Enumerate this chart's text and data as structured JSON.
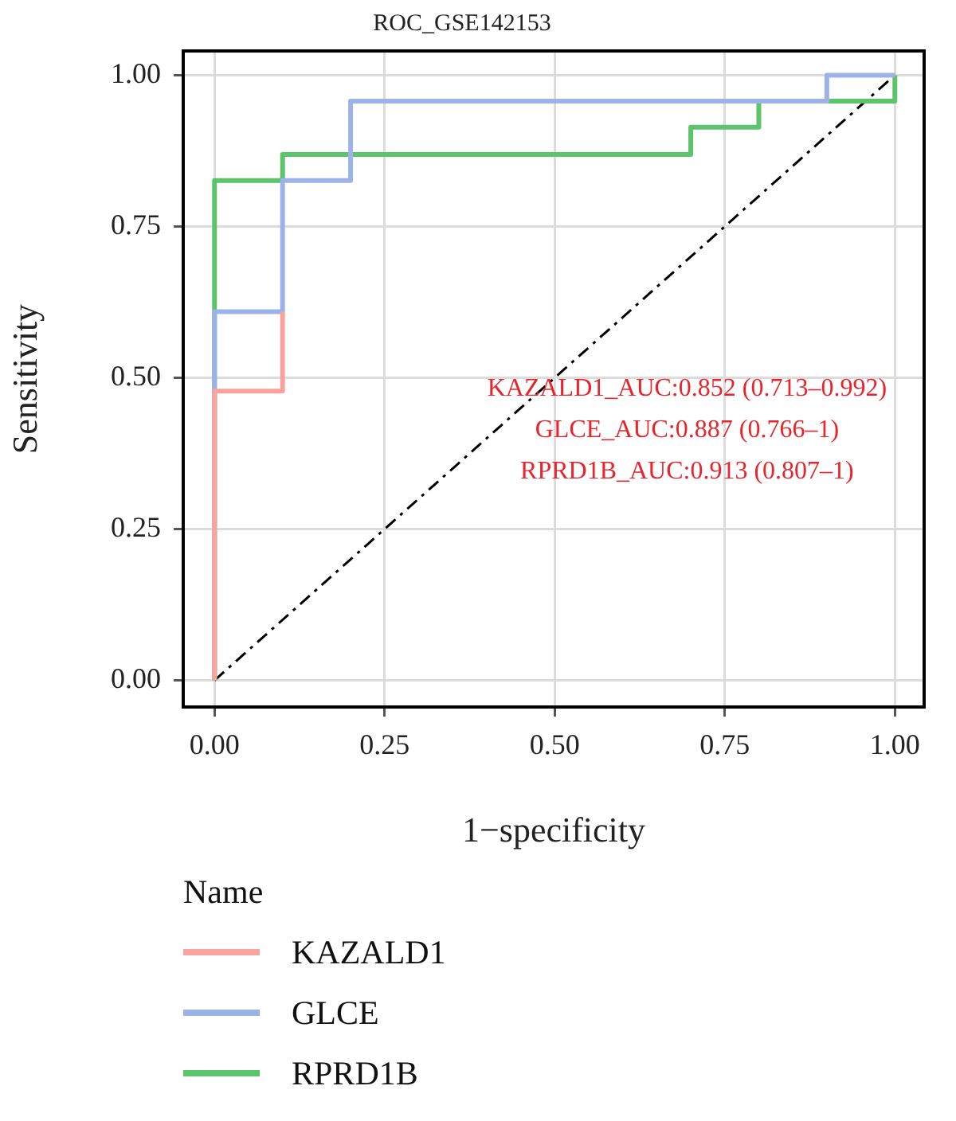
{
  "chart_data": {
    "type": "line",
    "title": "ROC_GSE142153",
    "xlabel": "1−specificity",
    "ylabel": "Sensitivity",
    "legend_title": "Name",
    "legend": "bottom left",
    "xlim": [
      -0.046,
      1.043
    ],
    "ylim": [
      -0.044,
      1.04
    ],
    "xticks": [
      {
        "value": 0,
        "label": "0.00"
      },
      {
        "value": 0.25,
        "label": "0.25"
      },
      {
        "value": 0.5,
        "label": "0.50"
      },
      {
        "value": 0.75,
        "label": "0.75"
      },
      {
        "value": 1,
        "label": "1.00"
      }
    ],
    "yticks": [
      {
        "value": 0,
        "label": "0.00"
      },
      {
        "value": 0.25,
        "label": "0.25"
      },
      {
        "value": 0.5,
        "label": "0.50"
      },
      {
        "value": 0.75,
        "label": "0.75"
      },
      {
        "value": 1,
        "label": "1.00"
      }
    ],
    "grid": true,
    "marker": "none",
    "series": [
      {
        "name": "KAZALD1",
        "color": "#f8a49c",
        "x": [
          0,
          0,
          0.1,
          0.1
        ],
        "values": [
          0,
          0.478,
          0.478,
          0.609
        ]
      },
      {
        "name": "GLCE",
        "color": "#9db3e8",
        "x": [
          0,
          0,
          0.1,
          0.1,
          0.2,
          0.2,
          0.9,
          0.9,
          1
        ],
        "values": [
          0,
          0.609,
          0.609,
          0.826,
          0.826,
          0.957,
          0.957,
          1,
          1
        ]
      },
      {
        "name": "RPRD1B",
        "color": "#5cc46a",
        "x": [
          0,
          0,
          0.1,
          0.1,
          0.7,
          0.7,
          0.8,
          0.8,
          1,
          1
        ],
        "values": [
          0,
          0.826,
          0.826,
          0.869,
          0.869,
          0.914,
          0.914,
          0.957,
          0.957,
          1
        ]
      },
      {
        "color": "#000000",
        "line_style": "dashed",
        "x": [
          0,
          1
        ],
        "values": [
          0,
          1
        ]
      }
    ],
    "annotations": [
      "KAZALD1_AUC:0.852 (0.713–0.992)",
      "GLCE_AUC:0.887 (0.766–1)",
      "RPRD1B_AUC:0.913 (0.807–1)"
    ]
  }
}
